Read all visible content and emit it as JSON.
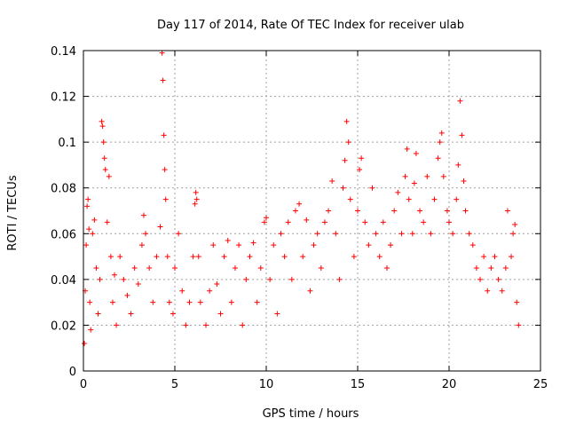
{
  "chart_data": {
    "type": "scatter",
    "title": "Day 117 of 2014, Rate Of TEC Index for receiver ulab",
    "xlabel": "GPS time / hours",
    "ylabel": "ROTI / TECUs",
    "xlim": [
      0,
      25
    ],
    "ylim": [
      0,
      0.14
    ],
    "xticks": [
      0,
      5,
      10,
      15,
      20,
      25
    ],
    "yticks": [
      0,
      0.02,
      0.04,
      0.06,
      0.08,
      0.1,
      0.12,
      0.14
    ],
    "xtick_labels": [
      "0",
      "5",
      "10",
      "15",
      "20",
      "25"
    ],
    "ytick_labels": [
      "0",
      "0.02",
      "0.04",
      "0.06",
      "0.08",
      "0.1",
      "0.12",
      "0.14"
    ],
    "grid": true,
    "marker": "+",
    "color": "#ff0000",
    "series": [
      {
        "points": [
          [
            0.05,
            0.012
          ],
          [
            0.1,
            0.035
          ],
          [
            0.15,
            0.055
          ],
          [
            0.2,
            0.072
          ],
          [
            0.25,
            0.075
          ],
          [
            0.3,
            0.062
          ],
          [
            0.35,
            0.03
          ],
          [
            0.4,
            0.018
          ],
          [
            0.5,
            0.06
          ],
          [
            0.6,
            0.066
          ],
          [
            0.7,
            0.045
          ],
          [
            0.8,
            0.025
          ],
          [
            0.9,
            0.04
          ],
          [
            1.0,
            0.109
          ],
          [
            1.05,
            0.107
          ],
          [
            1.1,
            0.1
          ],
          [
            1.15,
            0.093
          ],
          [
            1.2,
            0.088
          ],
          [
            1.3,
            0.065
          ],
          [
            1.4,
            0.085
          ],
          [
            1.5,
            0.05
          ],
          [
            1.6,
            0.03
          ],
          [
            1.7,
            0.042
          ],
          [
            1.8,
            0.02
          ],
          [
            2.0,
            0.05
          ],
          [
            2.2,
            0.04
          ],
          [
            2.4,
            0.033
          ],
          [
            2.6,
            0.025
          ],
          [
            2.8,
            0.045
          ],
          [
            3.0,
            0.038
          ],
          [
            3.2,
            0.055
          ],
          [
            3.3,
            0.068
          ],
          [
            3.4,
            0.06
          ],
          [
            3.6,
            0.045
          ],
          [
            3.8,
            0.03
          ],
          [
            4.0,
            0.05
          ],
          [
            4.2,
            0.063
          ],
          [
            4.3,
            0.139
          ],
          [
            4.35,
            0.127
          ],
          [
            4.4,
            0.103
          ],
          [
            4.45,
            0.088
          ],
          [
            4.5,
            0.075
          ],
          [
            4.6,
            0.05
          ],
          [
            4.7,
            0.03
          ],
          [
            4.9,
            0.025
          ],
          [
            5.0,
            0.045
          ],
          [
            5.2,
            0.06
          ],
          [
            5.4,
            0.035
          ],
          [
            5.6,
            0.02
          ],
          [
            5.8,
            0.03
          ],
          [
            6.0,
            0.05
          ],
          [
            6.1,
            0.073
          ],
          [
            6.15,
            0.078
          ],
          [
            6.2,
            0.075
          ],
          [
            6.3,
            0.05
          ],
          [
            6.4,
            0.03
          ],
          [
            6.7,
            0.02
          ],
          [
            6.9,
            0.035
          ],
          [
            7.1,
            0.055
          ],
          [
            7.3,
            0.038
          ],
          [
            7.5,
            0.025
          ],
          [
            7.7,
            0.05
          ],
          [
            7.9,
            0.057
          ],
          [
            8.1,
            0.03
          ],
          [
            8.3,
            0.045
          ],
          [
            8.5,
            0.055
          ],
          [
            8.7,
            0.02
          ],
          [
            8.9,
            0.04
          ],
          [
            9.1,
            0.05
          ],
          [
            9.3,
            0.056
          ],
          [
            9.5,
            0.03
          ],
          [
            9.7,
            0.045
          ],
          [
            9.9,
            0.065
          ],
          [
            10.0,
            0.067
          ],
          [
            10.2,
            0.04
          ],
          [
            10.4,
            0.055
          ],
          [
            10.6,
            0.025
          ],
          [
            10.8,
            0.06
          ],
          [
            11.0,
            0.05
          ],
          [
            11.2,
            0.065
          ],
          [
            11.4,
            0.04
          ],
          [
            11.6,
            0.07
          ],
          [
            11.8,
            0.073
          ],
          [
            12.0,
            0.05
          ],
          [
            12.2,
            0.066
          ],
          [
            12.4,
            0.035
          ],
          [
            12.6,
            0.055
          ],
          [
            12.8,
            0.06
          ],
          [
            13.0,
            0.045
          ],
          [
            13.2,
            0.065
          ],
          [
            13.4,
            0.07
          ],
          [
            13.6,
            0.083
          ],
          [
            13.8,
            0.06
          ],
          [
            14.0,
            0.04
          ],
          [
            14.2,
            0.08
          ],
          [
            14.3,
            0.092
          ],
          [
            14.4,
            0.109
          ],
          [
            14.5,
            0.1
          ],
          [
            14.6,
            0.075
          ],
          [
            14.8,
            0.05
          ],
          [
            15.0,
            0.07
          ],
          [
            15.1,
            0.088
          ],
          [
            15.2,
            0.093
          ],
          [
            15.4,
            0.065
          ],
          [
            15.6,
            0.055
          ],
          [
            15.8,
            0.08
          ],
          [
            16.0,
            0.06
          ],
          [
            16.2,
            0.05
          ],
          [
            16.4,
            0.065
          ],
          [
            16.6,
            0.045
          ],
          [
            16.8,
            0.055
          ],
          [
            17.0,
            0.07
          ],
          [
            17.2,
            0.078
          ],
          [
            17.4,
            0.06
          ],
          [
            17.6,
            0.085
          ],
          [
            17.7,
            0.097
          ],
          [
            17.8,
            0.075
          ],
          [
            18.0,
            0.06
          ],
          [
            18.1,
            0.082
          ],
          [
            18.2,
            0.095
          ],
          [
            18.4,
            0.07
          ],
          [
            18.6,
            0.065
          ],
          [
            18.8,
            0.085
          ],
          [
            19.0,
            0.06
          ],
          [
            19.2,
            0.075
          ],
          [
            19.4,
            0.093
          ],
          [
            19.5,
            0.1
          ],
          [
            19.6,
            0.104
          ],
          [
            19.7,
            0.085
          ],
          [
            19.9,
            0.07
          ],
          [
            20.0,
            0.065
          ],
          [
            20.2,
            0.06
          ],
          [
            20.4,
            0.075
          ],
          [
            20.5,
            0.09
          ],
          [
            20.6,
            0.118
          ],
          [
            20.7,
            0.103
          ],
          [
            20.8,
            0.083
          ],
          [
            20.9,
            0.07
          ],
          [
            21.1,
            0.06
          ],
          [
            21.3,
            0.055
          ],
          [
            21.5,
            0.045
          ],
          [
            21.7,
            0.04
          ],
          [
            21.9,
            0.05
          ],
          [
            22.1,
            0.035
          ],
          [
            22.3,
            0.045
          ],
          [
            22.5,
            0.05
          ],
          [
            22.7,
            0.04
          ],
          [
            22.9,
            0.035
          ],
          [
            23.1,
            0.045
          ],
          [
            23.2,
            0.07
          ],
          [
            23.4,
            0.05
          ],
          [
            23.5,
            0.06
          ],
          [
            23.6,
            0.064
          ],
          [
            23.7,
            0.03
          ],
          [
            23.8,
            0.02
          ]
        ]
      }
    ]
  }
}
